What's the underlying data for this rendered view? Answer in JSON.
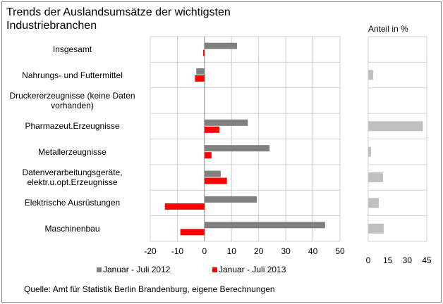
{
  "chart_data": [
    {
      "type": "bar",
      "orientation": "horizontal",
      "title": "Trends der Auslandsumsätze  der wichtigsten\nIndustriebranchen",
      "categories": [
        "Insgesamt",
        "Nahrungs- und Futtermittel",
        "Druckererzeugnisse (keine Daten\nvorhanden)",
        "Pharmazeut.Erzeugnisse",
        "Metallerzeugnisse",
        "Datenverarbeitungsgeräte,\nelektr.u.opt.Erzeugnisse",
        "Elektrische Ausrüstungen",
        "Maschinenbau"
      ],
      "series": [
        {
          "name": "Januar - Juli 2012",
          "color": "#808080",
          "values": [
            12,
            -3,
            null,
            16,
            24,
            6,
            19.3,
            44.5
          ]
        },
        {
          "name": "Januar - Juli 2013",
          "color": "#ff0000",
          "values": [
            -0.5,
            -3.5,
            null,
            5.5,
            2.6,
            8.3,
            -14.6,
            -8.9
          ]
        }
      ],
      "xlim": [
        -20,
        50
      ],
      "xticks": [
        -20,
        -10,
        0,
        10,
        20,
        30,
        40,
        50
      ],
      "grid": true,
      "legend": "bottom",
      "source": "Quelle: Amt für Statistik Berlin Brandenburg, eigene Berechnungen"
    },
    {
      "type": "bar",
      "orientation": "horizontal",
      "title": "Anteil in %",
      "color": "#c0c0c0",
      "values": [
        null,
        3.8,
        null,
        42,
        2.2,
        11.4,
        8.1,
        11.9
      ],
      "xlim": [
        0,
        45
      ],
      "xticks": [
        0,
        15,
        30,
        45
      ]
    }
  ]
}
